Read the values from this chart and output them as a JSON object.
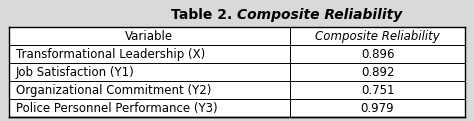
{
  "title_regular": "Table 2. ",
  "title_italic": "Composite Reliability",
  "col_headers": [
    "Variable",
    "Composite Reliability"
  ],
  "rows": [
    [
      "Transformational Leadership (X)",
      "0.896"
    ],
    [
      "Job Satisfaction (Y1)",
      "0.892"
    ],
    [
      "Organizational Commitment (Y2)",
      "0.751"
    ],
    [
      "Police Personnel Performance (Y3)",
      "0.979"
    ]
  ],
  "bg_color": "#d9d9d9",
  "table_bg": "#ffffff",
  "header_bg": "#ffffff",
  "border_color": "#000000",
  "text_color": "#000000",
  "font_size": 8.5,
  "title_font_size": 10,
  "col_split": 0.615,
  "fig_width": 4.74,
  "fig_height": 1.21,
  "dpi": 100
}
